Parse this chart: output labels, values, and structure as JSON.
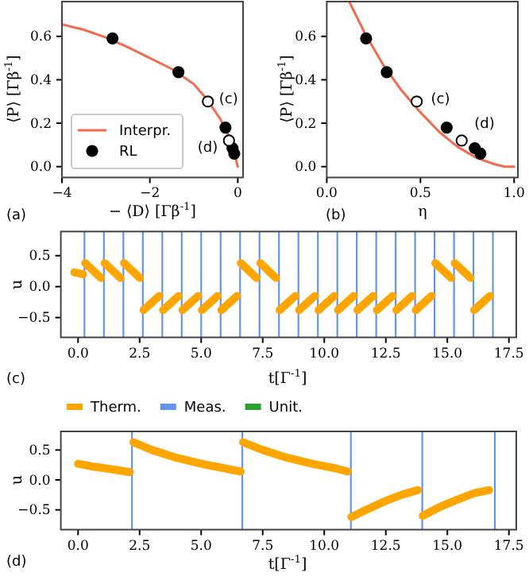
{
  "chart_data": [
    {
      "type": "line",
      "xlabel": "− ⟨D⟩ [Γβ$^{-1}$]",
      "ylabel": "⟨P⟩ [Γβ$^{-1}$]",
      "xlim": [
        -4,
        0.12
      ],
      "ylim": [
        -0.05,
        0.76
      ],
      "xticks": [
        {
          "value": -4,
          "label": "−4"
        },
        {
          "value": -2,
          "label": "−2"
        },
        0
      ],
      "yticks": [
        {
          "value": 0,
          "label": "0.0"
        },
        {
          "value": 0.2,
          "label": "0.2"
        },
        {
          "value": 0.4,
          "label": "0.4"
        },
        {
          "value": 0.6,
          "label": "0.6"
        }
      ],
      "legend": "bottom left",
      "grid": false,
      "series": [
        {
          "name": "Interpr.",
          "color": "#f26b4f",
          "x": [
            -4,
            -3.5,
            -3,
            -2.5,
            -2,
            -1.5,
            -1,
            -0.7,
            -0.4,
            -0.2,
            -0.1,
            0
          ],
          "values": [
            0.655,
            0.63,
            0.595,
            0.55,
            0.5,
            0.45,
            0.38,
            0.31,
            0.22,
            0.14,
            0.08,
            0
          ]
        },
        {
          "name": "RL",
          "type": "scatter",
          "color": "#000000",
          "x": [
            -2.85,
            -1.35,
            -0.28,
            -0.12,
            -0.08
          ],
          "values": [
            0.59,
            0.435,
            0.18,
            0.085,
            0.06
          ]
        },
        {
          "type": "scatter",
          "color": "#ffffff",
          "x": [
            -0.68,
            -0.2
          ],
          "values": [
            0.3,
            0.12
          ]
        }
      ],
      "annotations": [
        {
          "text": "(c)",
          "x": -0.68,
          "y": 0.3
        },
        {
          "text": "(d)",
          "x": -0.2,
          "y": 0.12
        },
        "(a)"
      ]
    },
    {
      "type": "line",
      "xlabel": "η",
      "ylabel": "⟨P⟩ [Γβ$^{-1}$]",
      "xlim": [
        0,
        1.02
      ],
      "ylim": [
        -0.05,
        0.76
      ],
      "xticks": [
        {
          "value": 0,
          "label": "0.0"
        },
        {
          "value": 0.5,
          "label": "0.5"
        },
        {
          "value": 1,
          "label": "1.0"
        }
      ],
      "yticks": [
        {
          "value": 0,
          "label": "0.0"
        },
        {
          "value": 0.2,
          "label": "0.2"
        },
        {
          "value": 0.4,
          "label": "0.4"
        },
        {
          "value": 0.6,
          "label": "0.6"
        }
      ],
      "grid": false,
      "series": [
        {
          "color": "#f26b4f",
          "x": [
            0.12,
            0.2,
            0.3,
            0.4,
            0.5,
            0.6,
            0.7,
            0.8,
            0.9,
            0.95,
            1.0
          ],
          "values": [
            0.76,
            0.62,
            0.47,
            0.35,
            0.25,
            0.16,
            0.09,
            0.04,
            0.01,
            0,
            0
          ]
        },
        {
          "type": "scatter",
          "color": "#000000",
          "x": [
            0.21,
            0.32,
            0.64,
            0.79,
            0.82
          ],
          "values": [
            0.59,
            0.435,
            0.18,
            0.085,
            0.06
          ]
        },
        {
          "type": "scatter",
          "color": "#ffffff",
          "x": [
            0.48,
            0.72
          ],
          "values": [
            0.3,
            0.12
          ]
        }
      ],
      "annotations": [
        {
          "text": "(c)",
          "x": 0.48,
          "y": 0.3
        },
        {
          "text": "(d)",
          "x": 0.72,
          "y": 0.12
        },
        "(b)"
      ]
    },
    {
      "type": "line",
      "xlabel": "t[Γ$^{-1}$]",
      "ylabel": "u",
      "xlim": [
        -0.7,
        17.8
      ],
      "ylim": [
        -0.82,
        0.89
      ],
      "xticks": [
        {
          "value": 0,
          "label": "0.0"
        },
        2.5,
        {
          "value": 5,
          "label": "5.0"
        },
        7.5,
        {
          "value": 10,
          "label": "10.0"
        },
        12.5,
        {
          "value": 15,
          "label": "15.0"
        },
        17.5
      ],
      "yticks": [
        {
          "value": -0.5,
          "label": "−0.5"
        },
        {
          "value": 0,
          "label": "0.0"
        },
        0.5
      ],
      "grid": false,
      "ref_lines": [
        {
          "axis": "x",
          "value": 0.26,
          "color": "#6495ed"
        },
        {
          "axis": "x",
          "value": 1.05,
          "color": "#6495ed"
        },
        {
          "axis": "x",
          "value": 1.84,
          "color": "#6495ed"
        },
        {
          "axis": "x",
          "value": 2.63,
          "color": "#6495ed"
        },
        {
          "axis": "x",
          "value": 3.42,
          "color": "#6495ed"
        },
        {
          "axis": "x",
          "value": 4.21,
          "color": "#6495ed"
        },
        {
          "axis": "x",
          "value": 5.0,
          "color": "#6495ed"
        },
        {
          "axis": "x",
          "value": 5.79,
          "color": "#6495ed"
        },
        {
          "axis": "x",
          "value": 6.58,
          "color": "#6495ed"
        },
        {
          "axis": "x",
          "value": 7.37,
          "color": "#6495ed"
        },
        {
          "axis": "x",
          "value": 8.16,
          "color": "#6495ed"
        },
        {
          "axis": "x",
          "value": 8.95,
          "color": "#6495ed"
        },
        {
          "axis": "x",
          "value": 9.74,
          "color": "#6495ed"
        },
        {
          "axis": "x",
          "value": 10.53,
          "color": "#6495ed"
        },
        {
          "axis": "x",
          "value": 11.32,
          "color": "#6495ed"
        },
        {
          "axis": "x",
          "value": 12.11,
          "color": "#6495ed"
        },
        {
          "axis": "x",
          "value": 12.9,
          "color": "#6495ed"
        },
        {
          "axis": "x",
          "value": 13.69,
          "color": "#6495ed"
        },
        {
          "axis": "x",
          "value": 14.48,
          "color": "#6495ed"
        },
        {
          "axis": "x",
          "value": 15.27,
          "color": "#6495ed"
        },
        {
          "axis": "x",
          "value": 16.06,
          "color": "#6495ed"
        },
        {
          "axis": "x",
          "value": 16.85,
          "color": "#6495ed"
        }
      ],
      "series": [
        {
          "color": "#ffa500",
          "x": [
            -0.15,
            0.2
          ],
          "values": [
            0.23,
            0.2
          ]
        },
        {
          "color": "#ffa500",
          "x": [
            0.29,
            0.93
          ],
          "values": [
            0.38,
            0.14
          ]
        },
        {
          "color": "#ffa500",
          "x": [
            1.08,
            1.72
          ],
          "values": [
            0.38,
            0.14
          ]
        },
        {
          "color": "#ffa500",
          "x": [
            1.87,
            2.51
          ],
          "values": [
            0.38,
            0.14
          ]
        },
        {
          "color": "#ffa500",
          "x": [
            2.66,
            3.3
          ],
          "values": [
            -0.38,
            -0.15
          ]
        },
        {
          "color": "#ffa500",
          "x": [
            3.45,
            4.09
          ],
          "values": [
            -0.38,
            -0.15
          ]
        },
        {
          "color": "#ffa500",
          "x": [
            4.24,
            4.88
          ],
          "values": [
            -0.38,
            -0.15
          ]
        },
        {
          "color": "#ffa500",
          "x": [
            5.03,
            5.67
          ],
          "values": [
            -0.38,
            -0.15
          ]
        },
        {
          "color": "#ffa500",
          "x": [
            5.82,
            6.46
          ],
          "values": [
            -0.38,
            -0.15
          ]
        },
        {
          "color": "#ffa500",
          "x": [
            6.61,
            7.25
          ],
          "values": [
            0.38,
            0.14
          ]
        },
        {
          "color": "#ffa500",
          "x": [
            7.4,
            8.04
          ],
          "values": [
            0.38,
            0.14
          ]
        },
        {
          "color": "#ffa500",
          "x": [
            8.19,
            8.83
          ],
          "values": [
            -0.38,
            -0.15
          ]
        },
        {
          "color": "#ffa500",
          "x": [
            8.98,
            9.62
          ],
          "values": [
            -0.38,
            -0.15
          ]
        },
        {
          "color": "#ffa500",
          "x": [
            9.77,
            10.41
          ],
          "values": [
            -0.38,
            -0.15
          ]
        },
        {
          "color": "#ffa500",
          "x": [
            10.56,
            11.2
          ],
          "values": [
            -0.38,
            -0.15
          ]
        },
        {
          "color": "#ffa500",
          "x": [
            11.35,
            11.99
          ],
          "values": [
            -0.38,
            -0.15
          ]
        },
        {
          "color": "#ffa500",
          "x": [
            12.14,
            12.78
          ],
          "values": [
            -0.38,
            -0.15
          ]
        },
        {
          "color": "#ffa500",
          "x": [
            12.93,
            13.57
          ],
          "values": [
            -0.38,
            -0.15
          ]
        },
        {
          "color": "#ffa500",
          "x": [
            13.72,
            14.36
          ],
          "values": [
            -0.38,
            -0.15
          ]
        },
        {
          "color": "#ffa500",
          "x": [
            14.51,
            15.15
          ],
          "values": [
            0.38,
            0.14
          ]
        },
        {
          "color": "#ffa500",
          "x": [
            15.3,
            15.94
          ],
          "values": [
            0.38,
            0.14
          ]
        },
        {
          "color": "#ffa500",
          "x": [
            16.09,
            16.73
          ],
          "values": [
            -0.38,
            -0.15
          ]
        }
      ],
      "annotations": [
        "(c)"
      ]
    },
    {
      "type": "line",
      "xlabel": "t[Γ$^{-1}$]",
      "ylabel": "u",
      "xlim": [
        -0.7,
        17.8
      ],
      "ylim": [
        -0.83,
        0.81
      ],
      "xticks": [
        {
          "value": 0,
          "label": "0.0"
        },
        2.5,
        {
          "value": 5,
          "label": "5.0"
        },
        7.5,
        {
          "value": 10,
          "label": "10.0"
        },
        12.5,
        {
          "value": 15,
          "label": "15.0"
        },
        17.5
      ],
      "yticks": [
        {
          "value": -0.5,
          "label": "−0.5"
        },
        {
          "value": 0,
          "label": "0.0"
        },
        0.5
      ],
      "grid": false,
      "legend": "top",
      "ref_lines": [
        {
          "axis": "x",
          "value": 2.19,
          "color": "#6495ed"
        },
        {
          "axis": "x",
          "value": 6.67,
          "color": "#6495ed"
        },
        {
          "axis": "x",
          "value": 11.08,
          "color": "#6495ed"
        },
        {
          "axis": "x",
          "value": 13.98,
          "color": "#6495ed"
        },
        {
          "axis": "x",
          "value": 16.93,
          "color": "#6495ed"
        }
      ],
      "series": [
        {
          "name": "Therm.",
          "color": "#ffa500",
          "x": [
            0,
            0.5,
            1.0,
            1.5,
            2.1
          ],
          "values": [
            0.27,
            0.23,
            0.2,
            0.17,
            0.13
          ]
        },
        {
          "color": "#ffa500",
          "x": [
            2.25,
            3,
            4,
            5,
            6,
            6.6
          ],
          "values": [
            0.63,
            0.5,
            0.37,
            0.27,
            0.19,
            0.14
          ]
        },
        {
          "color": "#ffa500",
          "x": [
            6.7,
            7.5,
            8.5,
            9.5,
            10.5,
            10.95
          ],
          "values": [
            0.63,
            0.5,
            0.37,
            0.27,
            0.19,
            0.14
          ]
        },
        {
          "color": "#ffa500",
          "x": [
            11.1,
            11.7,
            12.5,
            13.2,
            13.8
          ],
          "values": [
            -0.62,
            -0.5,
            -0.35,
            -0.24,
            -0.17
          ]
        },
        {
          "color": "#ffa500",
          "x": [
            14.0,
            14.6,
            15.4,
            16.1,
            16.7
          ],
          "values": [
            -0.6,
            -0.47,
            -0.33,
            -0.22,
            -0.17
          ]
        },
        {
          "name": "Meas.",
          "color": "#6495ed"
        },
        {
          "name": "Unit.",
          "color": "#2ca02c"
        }
      ],
      "annotations": [
        "(d)"
      ]
    }
  ]
}
